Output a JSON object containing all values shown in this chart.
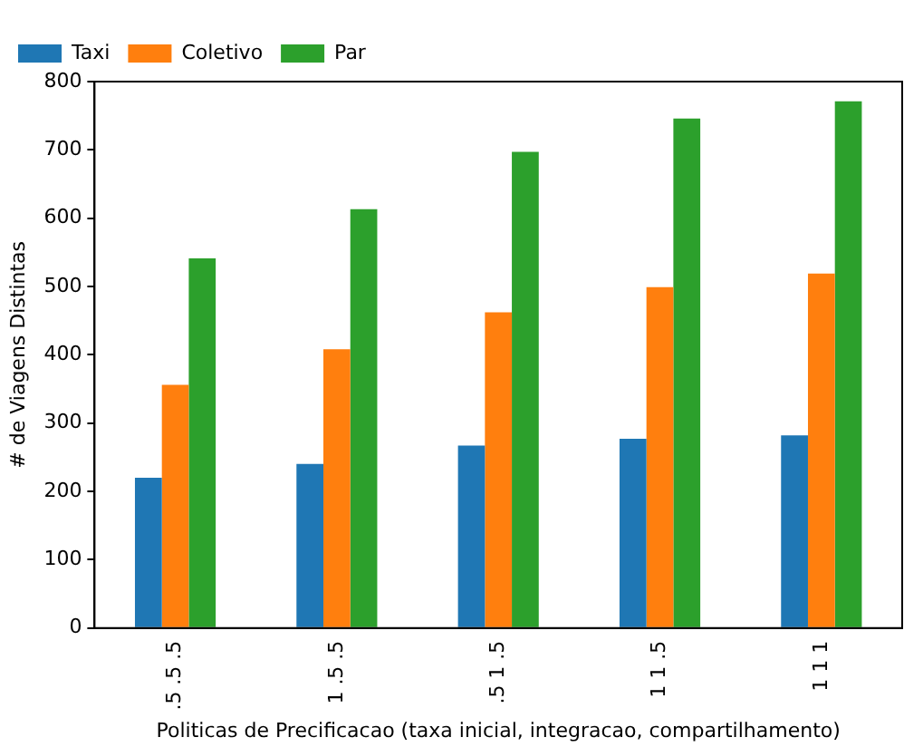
{
  "chart_data": {
    "type": "bar",
    "xlabel": "Politicas de Precificacao (taxa inicial, integracao, compartilhamento)",
    "ylabel": "# de Viagens Distintas",
    "categories": [
      ".5 .5 .5",
      "1 .5 .5",
      ".5 1 .5",
      "1 1 .5",
      "1 1 1"
    ],
    "series": [
      {
        "name": "Taxi",
        "color": "#1f77b4",
        "values": [
          220,
          240,
          267,
          277,
          282
        ]
      },
      {
        "name": "Coletivo",
        "color": "#ff7f0e",
        "values": [
          356,
          408,
          462,
          499,
          519
        ]
      },
      {
        "name": "Par",
        "color": "#2ca02c",
        "values": [
          541,
          613,
          697,
          746,
          771
        ]
      }
    ],
    "ylim": [
      0,
      800
    ],
    "yticks": [
      0,
      100,
      200,
      300,
      400,
      500,
      600,
      700,
      800
    ],
    "grid": false,
    "legend": "top left"
  }
}
